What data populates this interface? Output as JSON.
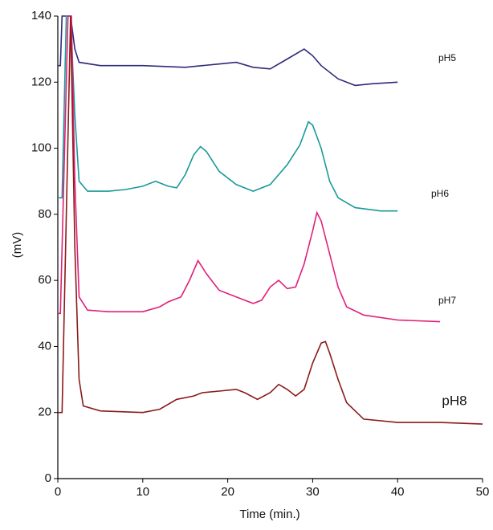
{
  "chart_data": {
    "type": "line",
    "xlabel": "Time (min.)",
    "ylabel": "(mV)",
    "xlim": [
      0,
      50
    ],
    "ylim": [
      0,
      140
    ],
    "xticks": [
      0,
      10,
      20,
      30,
      40,
      50
    ],
    "yticks": [
      0,
      20,
      40,
      60,
      80,
      100,
      120,
      140
    ],
    "series": [
      {
        "name": "pH5",
        "color": "#2e2a7a",
        "x": [
          0,
          0.3,
          0.5,
          1.5,
          2,
          2.5,
          5,
          10,
          15,
          17,
          19,
          21,
          23,
          25,
          27,
          29,
          30,
          31,
          33,
          35,
          37,
          40
        ],
        "values": [
          125,
          125,
          140,
          140,
          130,
          126,
          125,
          125,
          124.5,
          125,
          125.5,
          126,
          124.5,
          124,
          127,
          130,
          128,
          125,
          121,
          119,
          119.5,
          120
        ]
      },
      {
        "name": "pH6",
        "color": "#1a9a9a",
        "x": [
          0,
          0.5,
          1,
          1.5,
          2,
          2.5,
          3.5,
          6,
          8,
          10,
          11.5,
          13,
          14,
          15,
          16,
          16.8,
          17.5,
          19,
          21,
          23,
          25,
          27,
          28.5,
          29.5,
          30,
          31,
          32,
          33,
          35,
          38,
          40
        ],
        "values": [
          85,
          85,
          140,
          140,
          110,
          90,
          87,
          87,
          87.5,
          88.5,
          90,
          88.5,
          88,
          92,
          98,
          100.5,
          99,
          93,
          89,
          87,
          89,
          95,
          101,
          108,
          107,
          100,
          90,
          85,
          82,
          81,
          81
        ]
      },
      {
        "name": "pH7",
        "color": "#e0207a",
        "x": [
          0,
          0.3,
          1.2,
          1.6,
          2,
          2.5,
          3.5,
          6,
          10,
          12,
          13,
          14.5,
          15.5,
          16.5,
          17.5,
          19,
          21,
          23,
          24,
          25,
          26,
          27,
          28,
          29,
          30,
          30.5,
          31,
          32,
          33,
          34,
          36,
          40,
          45
        ],
        "values": [
          50,
          50,
          140,
          140,
          90,
          55,
          51,
          50.5,
          50.5,
          52,
          53.5,
          55,
          60,
          66,
          62,
          57,
          55,
          53,
          54,
          58,
          60,
          57.5,
          58,
          65,
          75,
          80.5,
          78,
          68,
          58,
          52,
          49.5,
          48,
          47.5
        ]
      },
      {
        "name": "pH8",
        "color": "#8b1a1a",
        "x": [
          0,
          0.5,
          1.5,
          2,
          2.5,
          3,
          5,
          10,
          12,
          14,
          16,
          17,
          19,
          21,
          22,
          23.5,
          25,
          26,
          27,
          28,
          29,
          30,
          31,
          31.5,
          32,
          33,
          34,
          36,
          40,
          45,
          50
        ],
        "values": [
          20,
          20,
          140,
          70,
          30,
          22,
          20.5,
          20,
          21,
          24,
          25,
          26,
          26.5,
          27,
          26,
          24,
          26,
          28.5,
          27,
          25,
          27,
          35,
          41,
          41.5,
          38,
          30,
          23,
          18,
          17,
          17,
          16.5
        ]
      }
    ]
  }
}
